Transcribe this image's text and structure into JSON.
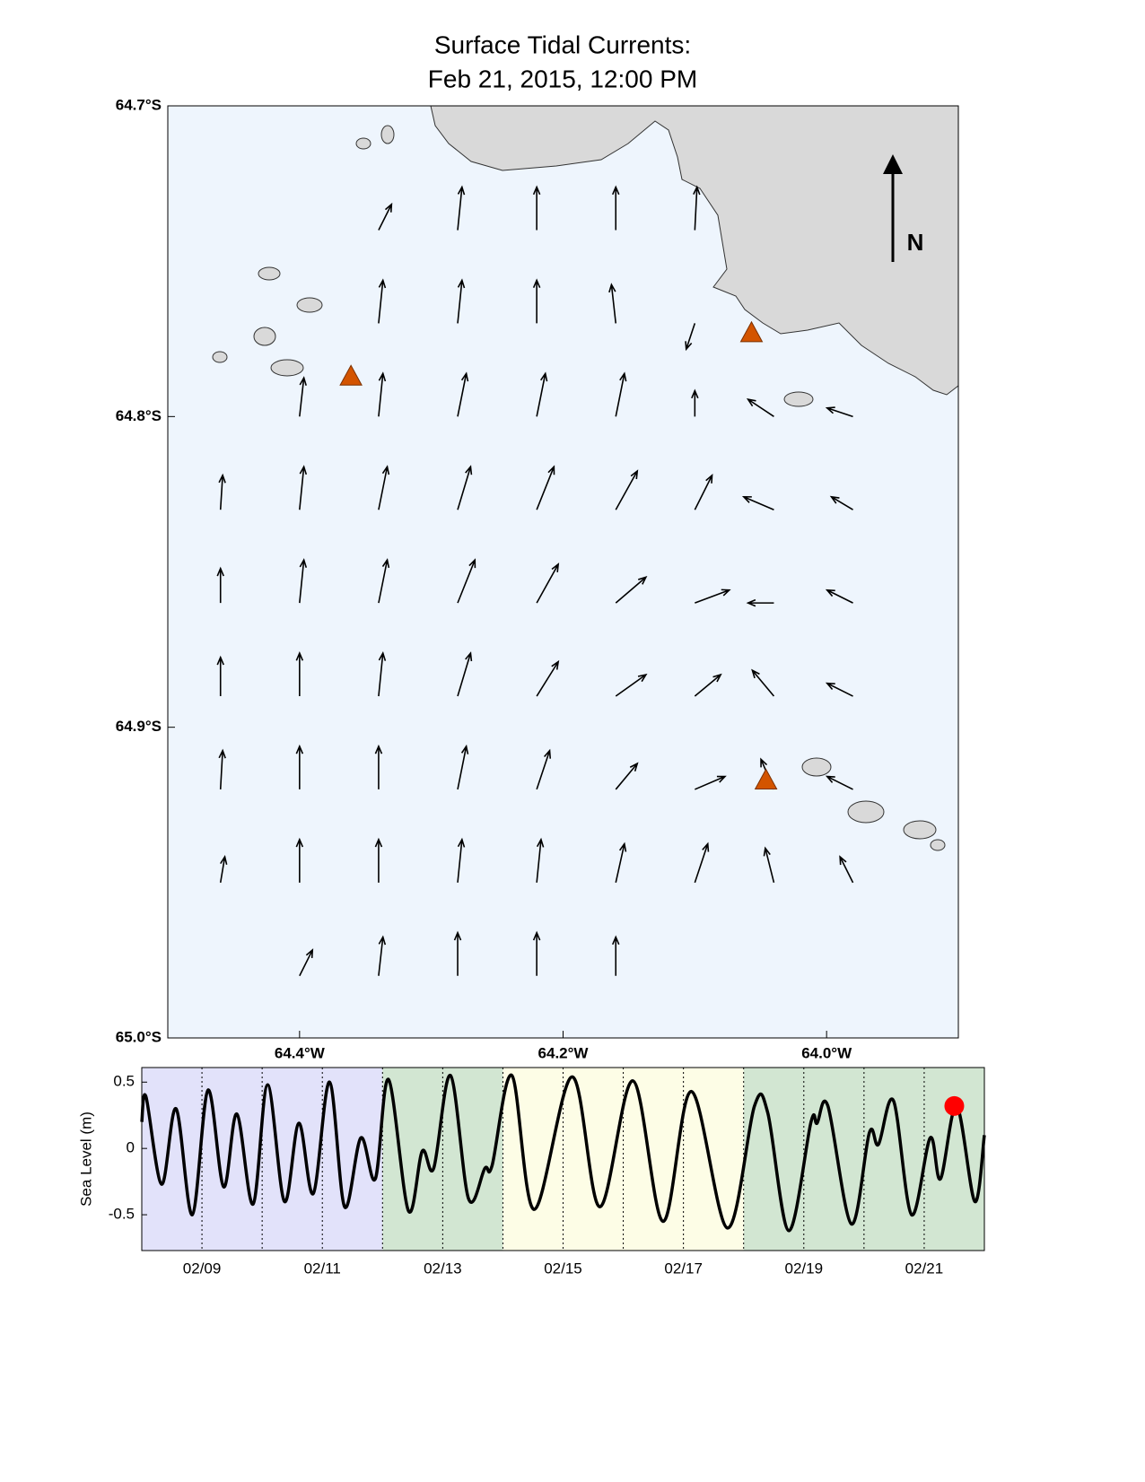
{
  "chart_data": [
    {
      "type": "quiver",
      "title": "Surface Tidal Currents:",
      "subtitle": "Feb 21, 2015, 12:00 PM",
      "north_label": "N",
      "xlim": [
        -64.5,
        -63.9
      ],
      "ylim": [
        -65.0,
        -64.7
      ],
      "xticks": [
        {
          "value": -64.4,
          "label": "64.4°W"
        },
        {
          "value": -64.2,
          "label": "64.2°W"
        },
        {
          "value": -64.0,
          "label": "64.0°W"
        }
      ],
      "yticks": [
        {
          "value": -64.7,
          "label": "64.7°S"
        },
        {
          "value": -64.8,
          "label": "64.8°S"
        },
        {
          "value": -64.9,
          "label": "64.9°S"
        },
        {
          "value": -65.0,
          "label": "65.0°S"
        }
      ],
      "lon": [
        -64.46,
        -64.4,
        -64.34,
        -64.28,
        -64.22,
        -64.16,
        -64.1,
        -64.04,
        -63.98
      ],
      "lat": [
        -64.74,
        -64.77,
        -64.8,
        -64.83,
        -64.86,
        -64.89,
        -64.92,
        -64.95,
        -64.98
      ],
      "u": [
        [
          null,
          null,
          0.3,
          0.1,
          0,
          0,
          0.05,
          null,
          null
        ],
        [
          null,
          null,
          0.1,
          0.1,
          0,
          -0.1,
          -0.2,
          null,
          null
        ],
        [
          null,
          0.1,
          0.1,
          0.2,
          0.2,
          0.2,
          0,
          -0.6,
          -0.6
        ],
        [
          0.05,
          0.1,
          0.2,
          0.3,
          0.4,
          0.5,
          0.4,
          -0.7,
          -0.5
        ],
        [
          0,
          0.1,
          0.2,
          0.4,
          0.5,
          0.7,
          0.8,
          -0.6,
          -0.6
        ],
        [
          0,
          0,
          0.1,
          0.3,
          0.5,
          0.7,
          0.6,
          -0.5,
          -0.6
        ],
        [
          0.05,
          0,
          0,
          0.2,
          0.3,
          0.5,
          0.7,
          -0.3,
          -0.6
        ],
        [
          0.1,
          0,
          0,
          0.1,
          0.1,
          0.2,
          0.3,
          -0.2,
          -0.3
        ],
        [
          null,
          0.3,
          0.1,
          0,
          0,
          0,
          null,
          null,
          null
        ]
      ],
      "v": [
        [
          null,
          null,
          0.6,
          1,
          1,
          1,
          1,
          null,
          null
        ],
        [
          null,
          null,
          1,
          1,
          1,
          0.9,
          -0.6,
          null,
          null
        ],
        [
          null,
          0.9,
          1,
          1,
          1,
          1,
          0.6,
          0.4,
          0.2
        ],
        [
          0.8,
          1,
          1,
          1,
          1,
          0.9,
          0.8,
          0.3,
          0.3
        ],
        [
          0.8,
          1,
          1,
          1,
          0.9,
          0.6,
          0.3,
          0,
          0.3
        ],
        [
          0.9,
          1,
          1,
          1,
          0.8,
          0.5,
          0.5,
          0.6,
          0.3
        ],
        [
          0.9,
          1,
          1,
          1,
          0.9,
          0.6,
          0.3,
          0.7,
          0.3
        ],
        [
          0.6,
          1,
          1,
          1,
          1,
          0.9,
          0.9,
          0.8,
          0.6
        ],
        [
          null,
          0.6,
          0.9,
          1,
          1,
          0.9,
          null,
          null,
          null
        ]
      ],
      "stations": {
        "lon": [
          -64.361,
          -64.057,
          -64.046
        ],
        "lat": [
          -64.787,
          -64.773,
          -64.917
        ],
        "color": "#d35400"
      }
    },
    {
      "type": "line",
      "ylabel": "Sea Level (m)",
      "xlim": [
        8,
        22
      ],
      "ylim": [
        -0.77,
        0.61
      ],
      "xticks": [
        {
          "value": 9,
          "label": "02/09"
        },
        {
          "value": 11,
          "label": "02/11"
        },
        {
          "value": 13,
          "label": "02/13"
        },
        {
          "value": 15,
          "label": "02/15"
        },
        {
          "value": 17,
          "label": "02/17"
        },
        {
          "value": 19,
          "label": "02/19"
        },
        {
          "value": 21,
          "label": "02/21"
        }
      ],
      "xminorticks": [
        10,
        12,
        14,
        16,
        18,
        20
      ],
      "yticks": [
        0.5,
        0,
        -0.5
      ],
      "bands": [
        {
          "from": 8,
          "to": 12,
          "color": "#e2e2fa"
        },
        {
          "from": 12,
          "to": 14,
          "color": "#d2e6d2"
        },
        {
          "from": 14,
          "to": 18,
          "color": "#fdfde6"
        },
        {
          "from": 18,
          "to": 22,
          "color": "#d2e6d2"
        }
      ],
      "color": "#000000",
      "x": [
        8.0,
        8.07,
        8.33,
        8.57,
        8.84,
        9.1,
        9.36,
        9.58,
        9.85,
        10.09,
        10.37,
        10.61,
        10.85,
        11.12,
        11.37,
        11.64,
        11.88,
        12.1,
        12.43,
        12.66,
        12.85,
        13.13,
        13.43,
        13.7,
        13.82,
        14.15,
        14.52,
        15.15,
        15.61,
        16.16,
        16.66,
        17.13,
        17.73,
        18.18,
        18.4,
        18.75,
        19.12,
        19.22,
        19.4,
        19.79,
        20.09,
        20.24,
        20.49,
        20.79,
        21.1,
        21.27,
        21.54,
        21.84,
        22.0
      ],
      "values": [
        0.2,
        0.39,
        -0.27,
        0.3,
        -0.5,
        0.44,
        -0.29,
        0.26,
        -0.42,
        0.48,
        -0.4,
        0.19,
        -0.34,
        0.5,
        -0.44,
        0.08,
        -0.23,
        0.52,
        -0.47,
        -0.02,
        -0.15,
        0.55,
        -0.38,
        -0.15,
        -0.13,
        0.55,
        -0.46,
        0.54,
        -0.44,
        0.51,
        -0.55,
        0.43,
        -0.6,
        0.32,
        0.27,
        -0.62,
        0.2,
        0.19,
        0.32,
        -0.57,
        0.12,
        0.03,
        0.36,
        -0.5,
        0.08,
        -0.23,
        0.32,
        -0.4,
        0.1
      ],
      "marker": {
        "x": 21.5,
        "y": 0.32,
        "color": "#ff0000"
      }
    }
  ]
}
